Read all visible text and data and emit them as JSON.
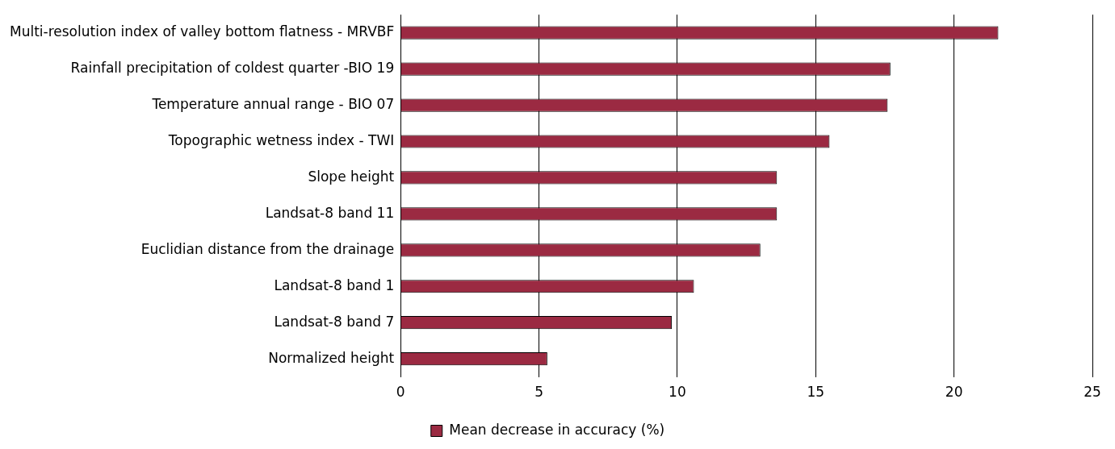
{
  "chart_data": {
    "type": "bar",
    "orientation": "horizontal",
    "categories": [
      "Multi-resolution index of valley bottom flatness - MRVBF",
      "Rainfall precipitation of coldest quarter -BIO 19",
      "Temperature annual range - BIO 07",
      "Topographic wetness index - TWI",
      "Slope height",
      "Landsat-8 band 11",
      "Euclidian distance from the drainage",
      "Landsat-8 band 1",
      "Landsat-8 band 7",
      "Normalized height"
    ],
    "series": [
      {
        "name": "Mean decrease in accuracy (%)",
        "color": "#9b2a42",
        "values": [
          21.6,
          17.7,
          17.6,
          15.5,
          13.6,
          13.6,
          13.0,
          10.6,
          9.8,
          5.3
        ]
      }
    ],
    "xlim": [
      0,
      25
    ],
    "xticks": [
      0,
      5,
      10,
      15,
      20,
      25
    ],
    "grid": "x",
    "legend": "bottom"
  }
}
